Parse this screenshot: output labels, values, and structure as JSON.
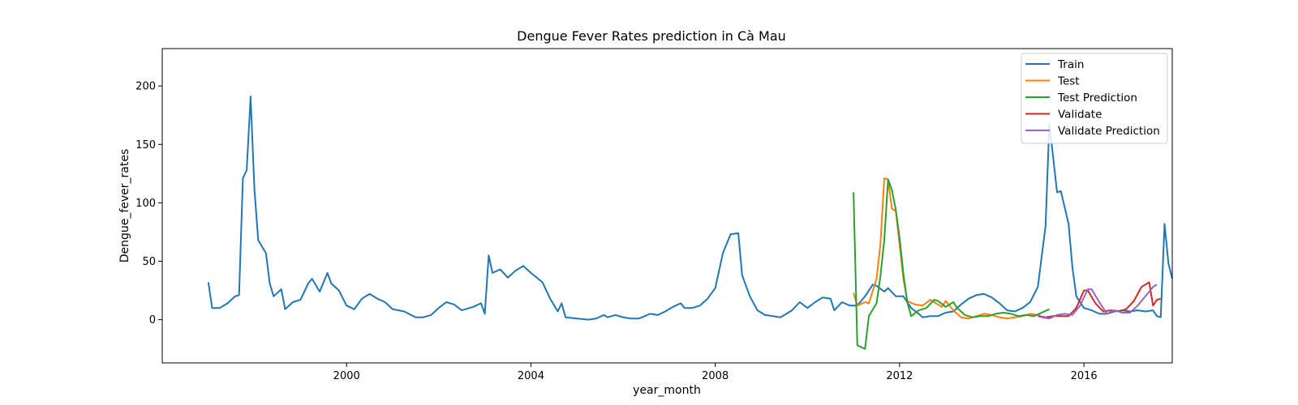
{
  "chart_data": {
    "type": "line",
    "title": "Dengue Fever Rates prediction in Cà Mau",
    "xlabel": "year_month",
    "ylabel": "Dengue_fever_rates",
    "xlim": [
      "1996-01",
      "2017-12"
    ],
    "ylim": [
      -37,
      232
    ],
    "x_ticks": [
      "2000",
      "2004",
      "2008",
      "2012",
      "2016"
    ],
    "y_ticks": [
      0,
      50,
      100,
      150,
      200
    ],
    "grid": false,
    "legend_position": "top-right",
    "series": [
      {
        "name": "Train",
        "color": "#1f77b4",
        "points": [
          [
            "1997-01",
            32
          ],
          [
            "1997-02",
            10
          ],
          [
            "1997-04",
            10
          ],
          [
            "1997-06",
            14
          ],
          [
            "1997-08",
            20
          ],
          [
            "1997-09",
            21
          ],
          [
            "1997-10",
            121
          ],
          [
            "1997-11",
            128
          ],
          [
            "1997-12",
            191
          ],
          [
            "1998-01",
            112
          ],
          [
            "1998-02",
            68
          ],
          [
            "1998-04",
            57
          ],
          [
            "1998-05",
            31
          ],
          [
            "1998-06",
            20
          ],
          [
            "1998-08",
            26
          ],
          [
            "1998-09",
            9
          ],
          [
            "1998-11",
            15
          ],
          [
            "1999-01",
            17
          ],
          [
            "1999-03",
            31
          ],
          [
            "1999-04",
            35
          ],
          [
            "1999-06",
            24
          ],
          [
            "1999-08",
            40
          ],
          [
            "1999-09",
            31
          ],
          [
            "1999-11",
            25
          ],
          [
            "2000-01",
            12
          ],
          [
            "2000-03",
            9
          ],
          [
            "2000-05",
            18
          ],
          [
            "2000-07",
            22
          ],
          [
            "2000-09",
            18
          ],
          [
            "2000-11",
            15
          ],
          [
            "2001-01",
            9
          ],
          [
            "2001-04",
            7
          ],
          [
            "2001-07",
            2
          ],
          [
            "2001-09",
            2
          ],
          [
            "2001-11",
            4
          ],
          [
            "2002-01",
            10
          ],
          [
            "2002-03",
            15
          ],
          [
            "2002-05",
            13
          ],
          [
            "2002-07",
            8
          ],
          [
            "2002-10",
            11
          ],
          [
            "2002-12",
            14
          ],
          [
            "2003-01",
            5
          ],
          [
            "2003-02",
            55
          ],
          [
            "2003-03",
            40
          ],
          [
            "2003-05",
            43
          ],
          [
            "2003-07",
            36
          ],
          [
            "2003-09",
            42
          ],
          [
            "2003-11",
            46
          ],
          [
            "2004-01",
            40
          ],
          [
            "2004-04",
            32
          ],
          [
            "2004-06",
            18
          ],
          [
            "2004-08",
            7
          ],
          [
            "2004-09",
            14
          ],
          [
            "2004-10",
            2
          ],
          [
            "2005-01",
            1
          ],
          [
            "2005-04",
            0
          ],
          [
            "2005-06",
            1
          ],
          [
            "2005-08",
            4
          ],
          [
            "2005-09",
            2
          ],
          [
            "2005-11",
            4
          ],
          [
            "2006-01",
            2
          ],
          [
            "2006-03",
            1
          ],
          [
            "2006-05",
            1
          ],
          [
            "2006-06",
            2
          ],
          [
            "2006-08",
            5
          ],
          [
            "2006-10",
            4
          ],
          [
            "2006-12",
            7
          ],
          [
            "2007-02",
            11
          ],
          [
            "2007-04",
            14
          ],
          [
            "2007-05",
            10
          ],
          [
            "2007-07",
            10
          ],
          [
            "2007-09",
            12
          ],
          [
            "2007-11",
            18
          ],
          [
            "2008-01",
            27
          ],
          [
            "2008-03",
            57
          ],
          [
            "2008-05",
            73
          ],
          [
            "2008-07",
            74
          ],
          [
            "2008-08",
            38
          ],
          [
            "2008-10",
            20
          ],
          [
            "2008-12",
            8
          ],
          [
            "2009-02",
            4
          ],
          [
            "2009-04",
            3
          ],
          [
            "2009-06",
            2
          ],
          [
            "2009-07",
            4
          ],
          [
            "2009-09",
            8
          ],
          [
            "2009-11",
            15
          ],
          [
            "2010-01",
            10
          ],
          [
            "2010-03",
            15
          ],
          [
            "2010-05",
            19
          ],
          [
            "2010-07",
            18
          ],
          [
            "2010-08",
            8
          ],
          [
            "2010-10",
            15
          ],
          [
            "2010-12",
            12
          ],
          [
            "2011-02",
            12
          ],
          [
            "2011-04",
            20
          ],
          [
            "2011-06",
            30
          ],
          [
            "2011-07",
            29
          ],
          [
            "2011-09",
            24
          ],
          [
            "2011-10",
            27
          ],
          [
            "2011-12",
            20
          ],
          [
            "2012-02",
            20
          ],
          [
            "2012-04",
            10
          ],
          [
            "2012-06",
            5
          ],
          [
            "2012-07",
            2
          ],
          [
            "2012-09",
            3
          ],
          [
            "2012-11",
            3
          ],
          [
            "2013-01",
            6
          ],
          [
            "2013-03",
            7
          ],
          [
            "2013-05",
            13
          ],
          [
            "2013-07",
            18
          ],
          [
            "2013-09",
            21
          ],
          [
            "2013-11",
            22
          ],
          [
            "2014-01",
            19
          ],
          [
            "2014-03",
            14
          ],
          [
            "2014-05",
            8
          ],
          [
            "2014-07",
            7
          ],
          [
            "2014-09",
            10
          ],
          [
            "2014-11",
            15
          ],
          [
            "2015-01",
            28
          ],
          [
            "2015-03",
            80
          ],
          [
            "2015-04",
            168
          ],
          [
            "2015-06",
            109
          ],
          [
            "2015-07",
            110
          ],
          [
            "2015-09",
            82
          ],
          [
            "2015-10",
            45
          ],
          [
            "2015-11",
            20
          ],
          [
            "2016-01",
            10
          ],
          [
            "2016-03",
            8
          ],
          [
            "2016-05",
            5
          ],
          [
            "2016-07",
            5
          ],
          [
            "2016-09",
            7
          ],
          [
            "2016-11",
            8
          ],
          [
            "2017-01",
            7
          ],
          [
            "2017-03",
            8
          ],
          [
            "2017-05",
            7
          ],
          [
            "2017-07",
            8
          ],
          [
            "2017-08",
            3
          ],
          [
            "2017-09",
            2
          ],
          [
            "2017-10",
            82
          ],
          [
            "2017-11",
            48
          ],
          [
            "2017-12",
            35
          ]
        ]
      },
      {
        "name": "Test",
        "color": "#ff7f0e",
        "points": [
          [
            "2011-01",
            23
          ],
          [
            "2011-02",
            12
          ],
          [
            "2011-04",
            15
          ],
          [
            "2011-05",
            14
          ],
          [
            "2011-07",
            35
          ],
          [
            "2011-08",
            64
          ],
          [
            "2011-09",
            121
          ],
          [
            "2011-10",
            120
          ],
          [
            "2011-11",
            95
          ],
          [
            "2011-12",
            93
          ],
          [
            "2012-01",
            64
          ],
          [
            "2012-02",
            35
          ],
          [
            "2012-03",
            16
          ],
          [
            "2012-05",
            13
          ],
          [
            "2012-07",
            12
          ],
          [
            "2012-09",
            17
          ],
          [
            "2012-10",
            15
          ],
          [
            "2012-12",
            11
          ],
          [
            "2013-01",
            16
          ],
          [
            "2013-03",
            8
          ],
          [
            "2013-05",
            2
          ],
          [
            "2013-07",
            1
          ],
          [
            "2013-09",
            3
          ],
          [
            "2013-11",
            5
          ],
          [
            "2014-01",
            4
          ],
          [
            "2014-03",
            2
          ],
          [
            "2014-05",
            1
          ],
          [
            "2014-07",
            2
          ],
          [
            "2014-09",
            3
          ],
          [
            "2014-11",
            5
          ],
          [
            "2015-01",
            4
          ]
        ]
      },
      {
        "name": "Test Prediction",
        "color": "#2ca02c",
        "points": [
          [
            "2011-01",
            109
          ],
          [
            "2011-02",
            -22
          ],
          [
            "2011-04",
            -25
          ],
          [
            "2011-05",
            3
          ],
          [
            "2011-07",
            14
          ],
          [
            "2011-08",
            37
          ],
          [
            "2011-09",
            68
          ],
          [
            "2011-10",
            120
          ],
          [
            "2011-11",
            111
          ],
          [
            "2011-12",
            94
          ],
          [
            "2012-01",
            70
          ],
          [
            "2012-02",
            39
          ],
          [
            "2012-03",
            15
          ],
          [
            "2012-04",
            3
          ],
          [
            "2012-06",
            8
          ],
          [
            "2012-08",
            10
          ],
          [
            "2012-10",
            17
          ],
          [
            "2012-11",
            16
          ],
          [
            "2013-01",
            11
          ],
          [
            "2013-03",
            15
          ],
          [
            "2013-04",
            10
          ],
          [
            "2013-06",
            4
          ],
          [
            "2013-08",
            2
          ],
          [
            "2013-10",
            3
          ],
          [
            "2013-12",
            3
          ],
          [
            "2014-02",
            5
          ],
          [
            "2014-04",
            6
          ],
          [
            "2014-06",
            5
          ],
          [
            "2014-08",
            3
          ],
          [
            "2014-10",
            4
          ],
          [
            "2014-12",
            3
          ],
          [
            "2015-02",
            6
          ],
          [
            "2015-04",
            9
          ]
        ]
      },
      {
        "name": "Validate",
        "color": "#d62728",
        "points": [
          [
            "2015-01",
            3
          ],
          [
            "2015-03",
            2
          ],
          [
            "2015-05",
            3
          ],
          [
            "2015-07",
            3
          ],
          [
            "2015-09",
            3
          ],
          [
            "2015-11",
            10
          ],
          [
            "2016-01",
            25
          ],
          [
            "2016-02",
            25
          ],
          [
            "2016-04",
            14
          ],
          [
            "2016-06",
            7
          ],
          [
            "2016-08",
            8
          ],
          [
            "2016-10",
            7
          ],
          [
            "2016-12",
            9
          ],
          [
            "2017-02",
            16
          ],
          [
            "2017-04",
            28
          ],
          [
            "2017-06",
            32
          ],
          [
            "2017-07",
            12
          ],
          [
            "2017-08",
            17
          ],
          [
            "2017-09",
            18
          ]
        ]
      },
      {
        "name": "Validate Prediction",
        "color": "#9467bd",
        "points": [
          [
            "2015-01",
            5
          ],
          [
            "2015-02",
            2
          ],
          [
            "2015-04",
            1
          ],
          [
            "2015-06",
            4
          ],
          [
            "2015-08",
            5
          ],
          [
            "2015-10",
            4
          ],
          [
            "2015-12",
            12
          ],
          [
            "2016-02",
            26
          ],
          [
            "2016-03",
            26
          ],
          [
            "2016-05",
            15
          ],
          [
            "2016-07",
            5
          ],
          [
            "2016-09",
            8
          ],
          [
            "2016-11",
            6
          ],
          [
            "2017-01",
            6
          ],
          [
            "2017-03",
            12
          ],
          [
            "2017-05",
            20
          ],
          [
            "2017-07",
            28
          ],
          [
            "2017-08",
            30
          ]
        ]
      }
    ]
  }
}
